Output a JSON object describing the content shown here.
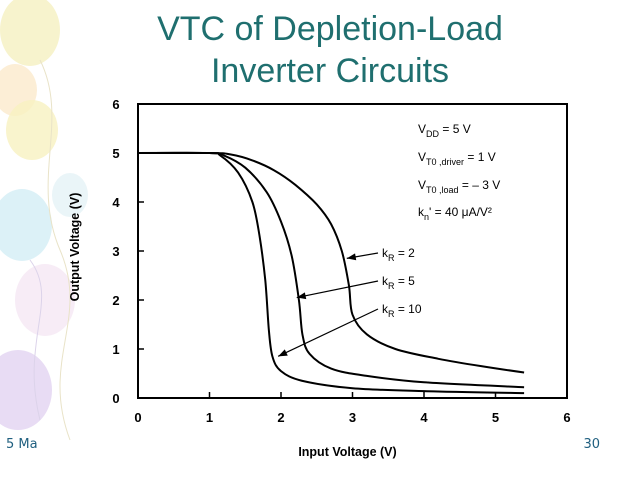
{
  "slide": {
    "title_line1": "VTC of Depletion-Load",
    "title_line2": "Inverter Circuits",
    "footer_left": "5 Ma",
    "page_number": "30",
    "title_color": "#1f6f6f"
  },
  "chart_data": {
    "type": "line",
    "xlabel": "Input Voltage  (V)",
    "ylabel": "Output Voltage  (V)",
    "xlim": [
      0,
      6
    ],
    "ylim": [
      0,
      6
    ],
    "xticks": [
      "0",
      "1",
      "2",
      "3",
      "4",
      "5",
      "6"
    ],
    "yticks": [
      "0",
      "1",
      "2",
      "3",
      "4",
      "5",
      "6"
    ],
    "grid": false,
    "parameters": [
      {
        "base": "V",
        "sub": "DD",
        "rest": " = 5 V"
      },
      {
        "base": "V",
        "sub": "T0 ,driver",
        "rest": " = 1 V"
      },
      {
        "base": "V",
        "sub": "T0 ,load",
        "rest": " = – 3 V"
      },
      {
        "base": "k",
        "sub": "n",
        "rest": "' =  40 μA/V²"
      }
    ],
    "series": [
      {
        "name": "k_R = 2",
        "label_base": "k",
        "label_sub": "R",
        "label_rest": " = 2",
        "x": [
          0,
          1.0,
          1.3,
          1.6,
          1.9,
          2.2,
          2.5,
          2.7,
          2.85,
          2.95,
          3.0,
          3.2,
          3.6,
          4.2,
          4.8,
          5.4
        ],
        "y": [
          5,
          5,
          4.97,
          4.85,
          4.65,
          4.35,
          3.95,
          3.55,
          3.0,
          2.3,
          1.7,
          1.3,
          1.0,
          0.8,
          0.65,
          0.52
        ]
      },
      {
        "name": "k_R = 5",
        "label_base": "k",
        "label_sub": "R",
        "label_rest": " = 5",
        "x": [
          0,
          1.0,
          1.2,
          1.5,
          1.8,
          2.0,
          2.15,
          2.25,
          2.3,
          2.4,
          2.7,
          3.2,
          4.0,
          5.4
        ],
        "y": [
          5,
          5,
          4.95,
          4.7,
          4.2,
          3.6,
          2.9,
          2.0,
          1.3,
          0.9,
          0.6,
          0.45,
          0.32,
          0.22
        ]
      },
      {
        "name": "k_R = 10",
        "label_base": "k",
        "label_sub": "R",
        "label_rest": " = 10",
        "x": [
          0,
          1.0,
          1.15,
          1.4,
          1.6,
          1.7,
          1.78,
          1.83,
          1.88,
          2.0,
          2.3,
          3.0,
          4.0,
          5.4
        ],
        "y": [
          5,
          5,
          4.95,
          4.6,
          4.0,
          3.3,
          2.4,
          1.4,
          0.85,
          0.55,
          0.35,
          0.2,
          0.14,
          0.1
        ]
      }
    ],
    "annotations": [
      {
        "series": 0,
        "arrow_to": [
          2.92,
          2.85
        ]
      },
      {
        "series": 1,
        "arrow_to": [
          2.22,
          2.05
        ]
      },
      {
        "series": 2,
        "arrow_to": [
          1.96,
          0.85
        ]
      }
    ]
  }
}
